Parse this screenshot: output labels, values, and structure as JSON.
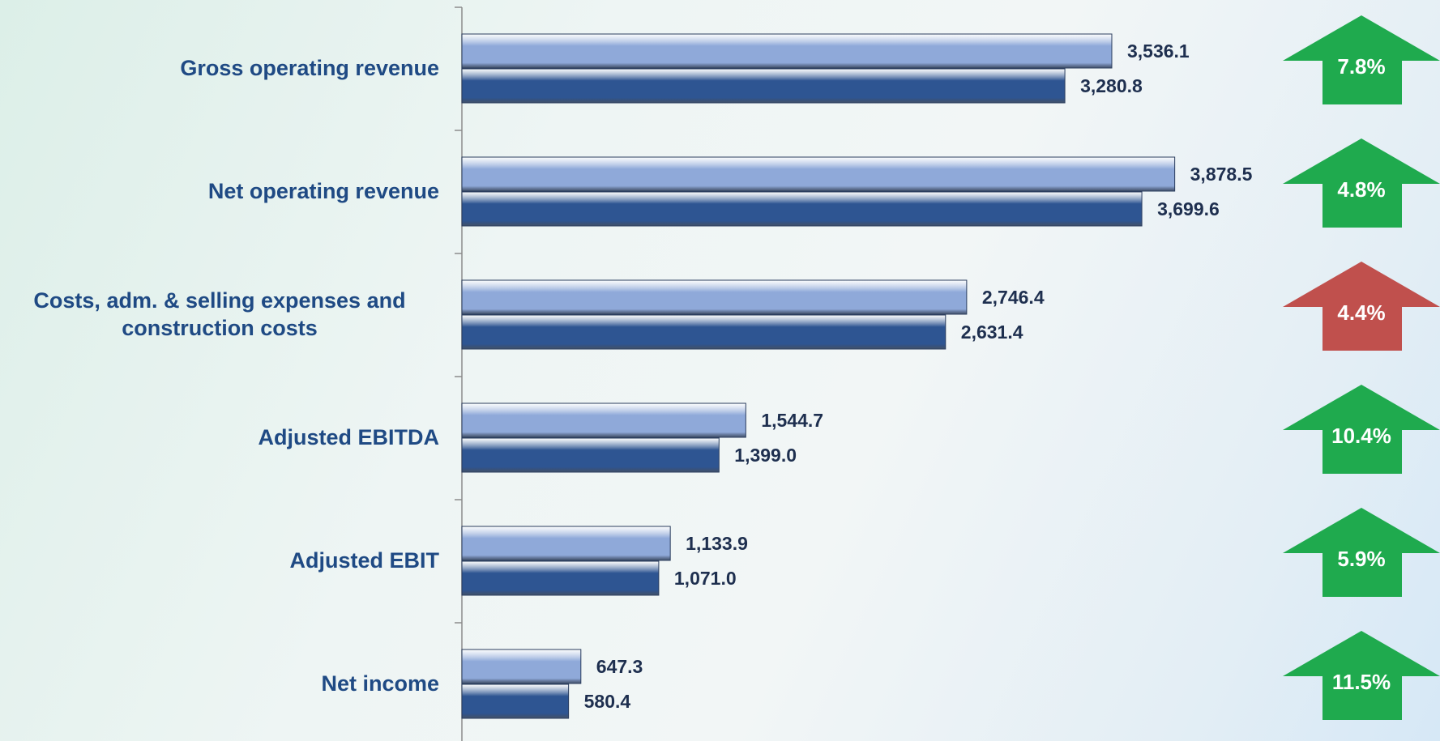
{
  "chart_data": {
    "type": "bar",
    "orientation": "horizontal",
    "categories": [
      "Gross operating revenue",
      "Net operating revenue",
      "Costs, adm. & selling expenses and construction costs",
      "Adjusted EBITDA",
      "Adjusted EBIT",
      "Net income"
    ],
    "series": [
      {
        "color": "#8fa9d9",
        "values": [
          3536.1,
          3878.5,
          2746.4,
          1544.7,
          1133.9,
          647.3
        ],
        "value_labels": [
          "3,536.1",
          "3,878.5",
          "2,746.4",
          "1,544.7",
          "1,133.9",
          "647.3"
        ]
      },
      {
        "color": "#2e5592",
        "values": [
          3280.8,
          3699.6,
          2631.4,
          1399.0,
          1071.0,
          580.4
        ],
        "value_labels": [
          "3,280.8",
          "3,699.6",
          "2,631.4",
          "1,399.0",
          "1,071.0",
          "580.4"
        ]
      }
    ],
    "xlim": [
      0,
      5000
    ],
    "changes": [
      {
        "label": "7.8%",
        "color": "#1faa4e"
      },
      {
        "label": "4.8%",
        "color": "#1faa4e"
      },
      {
        "label": "4.4%",
        "color": "#c0504d"
      },
      {
        "label": "10.4%",
        "color": "#1faa4e"
      },
      {
        "label": "5.9%",
        "color": "#1faa4e"
      },
      {
        "label": "11.5%",
        "color": "#1faa4e"
      }
    ]
  }
}
